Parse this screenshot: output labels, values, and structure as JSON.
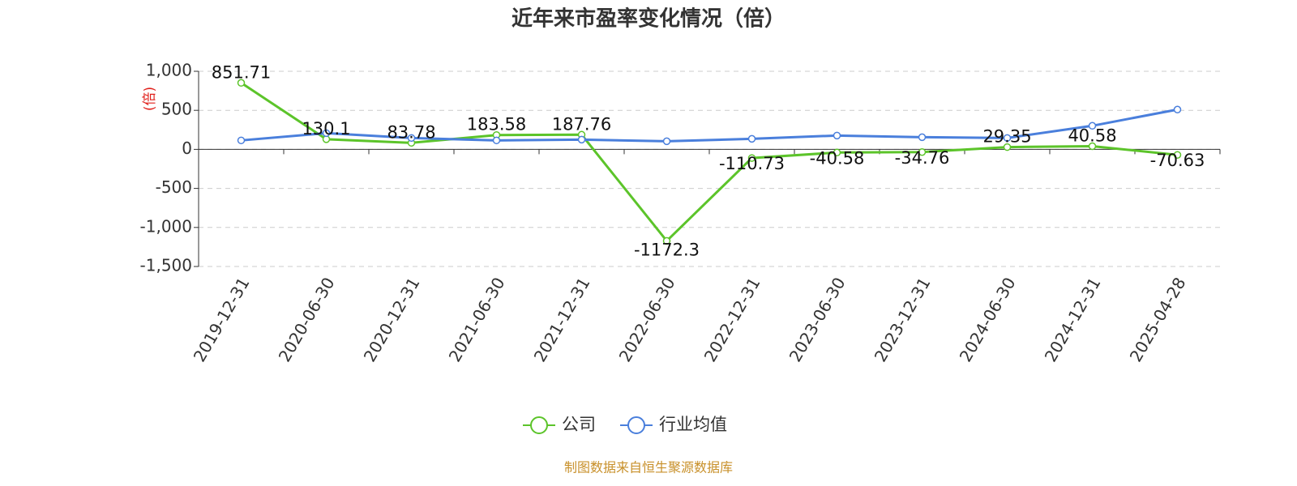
{
  "chart_data": {
    "type": "line",
    "title": "近年来市盈率变化情况（倍）",
    "y_label": "(倍)",
    "categories": [
      "2019-12-31",
      "2020-06-30",
      "2020-12-31",
      "2021-06-30",
      "2021-12-31",
      "2022-06-30",
      "2022-12-31",
      "2023-06-30",
      "2023-12-31",
      "2024-06-30",
      "2024-12-31",
      "2025-04-28"
    ],
    "series": [
      {
        "name": "公司",
        "color": "#5cc42a",
        "values": [
          851.71,
          130.1,
          83.78,
          183.58,
          187.76,
          -1172.3,
          -110.73,
          -40.58,
          -34.76,
          29.35,
          40.58,
          -70.63
        ],
        "show_labels": true
      },
      {
        "name": "行业均值",
        "color": "#4a7fdc",
        "values": [
          115,
          208,
          146,
          115,
          125,
          104,
          135,
          177,
          156,
          146,
          302,
          510
        ],
        "show_labels": false
      }
    ],
    "ylim": [
      -1500,
      1000
    ],
    "yticks": [
      {
        "value": 1000,
        "label": "1,000"
      },
      500,
      0,
      -500,
      {
        "value": -1000,
        "label": "-1,000"
      },
      {
        "value": -1500,
        "label": "-1,500"
      }
    ],
    "grid": true,
    "legend": "bottom",
    "source": "制图数据来自恒生聚源数据库"
  }
}
